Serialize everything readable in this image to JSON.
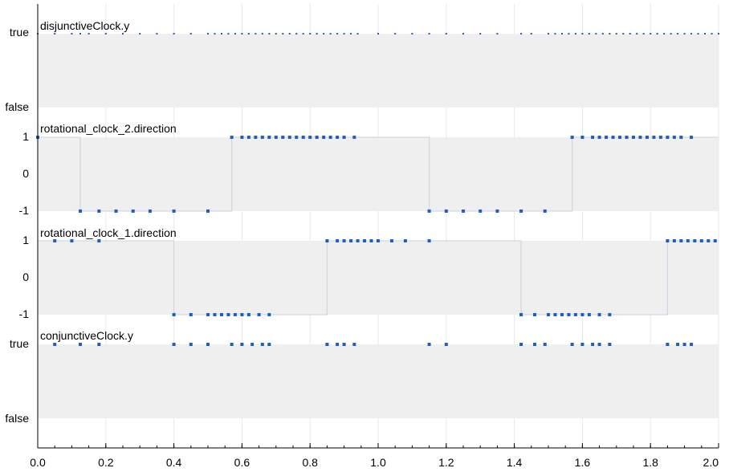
{
  "chart_data": {
    "type": "scatter",
    "xlim": [
      0.0,
      2.0
    ],
    "xticks": [
      "0.0",
      "0.2",
      "0.4",
      "0.6",
      "0.8",
      "1.0",
      "1.2",
      "1.4",
      "1.6",
      "1.8",
      "2.0"
    ],
    "grid": true,
    "colors": {
      "marker": "#1f5fc0",
      "band": "#efefef",
      "step_line": "#c8d0e0",
      "grid": "#e8e8e8"
    },
    "subplots": [
      {
        "title": "disjunctiveClock.y",
        "kind": "boolean",
        "ytick_labels": [
          "true",
          "false"
        ],
        "marker_size": "small",
        "x": [
          0.0,
          0.05,
          0.1,
          0.125,
          0.15,
          0.2,
          0.25,
          0.3,
          0.35,
          0.4,
          0.45,
          0.5,
          0.52,
          0.54,
          0.56,
          0.58,
          0.6,
          0.62,
          0.64,
          0.66,
          0.68,
          0.7,
          0.72,
          0.74,
          0.76,
          0.78,
          0.8,
          0.82,
          0.84,
          0.86,
          0.88,
          0.9,
          0.92,
          0.94,
          1.0,
          1.05,
          1.1,
          1.15,
          1.2,
          1.25,
          1.3,
          1.35,
          1.42,
          1.45,
          1.5,
          1.52,
          1.54,
          1.56,
          1.58,
          1.6,
          1.62,
          1.64,
          1.66,
          1.68,
          1.7,
          1.72,
          1.74,
          1.76,
          1.78,
          1.8,
          1.82,
          1.84,
          1.86,
          1.88,
          1.9,
          1.92,
          1.94,
          1.96,
          1.98,
          2.0
        ],
        "y": [
          true,
          true,
          true,
          true,
          true,
          true,
          true,
          true,
          true,
          true,
          true,
          true,
          true,
          true,
          true,
          true,
          true,
          true,
          true,
          true,
          true,
          true,
          true,
          true,
          true,
          true,
          true,
          true,
          true,
          true,
          true,
          true,
          true,
          true,
          true,
          true,
          true,
          true,
          true,
          true,
          true,
          true,
          true,
          true,
          true,
          true,
          true,
          true,
          true,
          true,
          true,
          true,
          true,
          true,
          true,
          true,
          true,
          true,
          true,
          true,
          true,
          true,
          true,
          true,
          true,
          true,
          true,
          true,
          true,
          true
        ]
      },
      {
        "title": "rotational_clock_2.direction",
        "kind": "integer",
        "ytick_labels": [
          "1",
          "0",
          "-1"
        ],
        "ylim": [
          -1,
          1
        ],
        "marker_size": "large",
        "transitions_x": [
          0.0,
          0.125,
          0.57,
          1.15,
          1.57
        ],
        "transitions_y": [
          1,
          -1,
          1,
          -1,
          1
        ],
        "x": [
          0.0,
          0.125,
          0.18,
          0.23,
          0.28,
          0.33,
          0.4,
          0.5,
          0.57,
          0.6,
          0.62,
          0.64,
          0.66,
          0.68,
          0.7,
          0.72,
          0.74,
          0.76,
          0.78,
          0.8,
          0.82,
          0.84,
          0.86,
          0.88,
          0.9,
          0.93,
          1.15,
          1.2,
          1.25,
          1.3,
          1.35,
          1.42,
          1.49,
          1.57,
          1.6,
          1.63,
          1.65,
          1.67,
          1.69,
          1.71,
          1.73,
          1.75,
          1.77,
          1.79,
          1.81,
          1.83,
          1.85,
          1.87,
          1.89,
          1.92
        ],
        "y": [
          1,
          -1,
          -1,
          -1,
          -1,
          -1,
          -1,
          -1,
          1,
          1,
          1,
          1,
          1,
          1,
          1,
          1,
          1,
          1,
          1,
          1,
          1,
          1,
          1,
          1,
          1,
          1,
          -1,
          -1,
          -1,
          -1,
          -1,
          -1,
          -1,
          1,
          1,
          1,
          1,
          1,
          1,
          1,
          1,
          1,
          1,
          1,
          1,
          1,
          1,
          1,
          1,
          1
        ]
      },
      {
        "title": "rotational_clock_1.direction",
        "kind": "integer",
        "ytick_labels": [
          "1",
          "0",
          "-1"
        ],
        "ylim": [
          -1,
          1
        ],
        "marker_size": "large",
        "transitions_x": [
          0.0,
          0.4,
          0.85,
          1.42,
          1.85
        ],
        "transitions_y": [
          1,
          -1,
          1,
          -1,
          1
        ],
        "x": [
          0.05,
          0.1,
          0.18,
          0.4,
          0.45,
          0.5,
          0.52,
          0.54,
          0.56,
          0.58,
          0.6,
          0.62,
          0.65,
          0.68,
          0.85,
          0.88,
          0.9,
          0.92,
          0.94,
          0.96,
          0.98,
          1.0,
          1.04,
          1.08,
          1.15,
          1.42,
          1.46,
          1.5,
          1.52,
          1.54,
          1.56,
          1.58,
          1.6,
          1.62,
          1.65,
          1.68,
          1.85,
          1.87,
          1.89,
          1.91,
          1.93,
          1.95,
          1.97,
          1.99
        ],
        "y": [
          1,
          1,
          1,
          -1,
          -1,
          -1,
          -1,
          -1,
          -1,
          -1,
          -1,
          -1,
          -1,
          -1,
          1,
          1,
          1,
          1,
          1,
          1,
          1,
          1,
          1,
          1,
          1,
          -1,
          -1,
          -1,
          -1,
          -1,
          -1,
          -1,
          -1,
          -1,
          -1,
          -1,
          1,
          1,
          1,
          1,
          1,
          1,
          1,
          1
        ]
      },
      {
        "title": "conjunctiveClock.y",
        "kind": "boolean",
        "ytick_labels": [
          "true",
          "false"
        ],
        "marker_size": "large",
        "x": [
          0.05,
          0.125,
          0.18,
          0.4,
          0.45,
          0.5,
          0.57,
          0.6,
          0.63,
          0.66,
          0.68,
          0.85,
          0.88,
          0.9,
          0.93,
          1.15,
          1.2,
          1.42,
          1.46,
          1.49,
          1.57,
          1.6,
          1.63,
          1.65,
          1.68,
          1.85,
          1.88,
          1.9,
          1.92
        ],
        "y": [
          true,
          true,
          true,
          true,
          true,
          true,
          true,
          true,
          true,
          true,
          true,
          true,
          true,
          true,
          true,
          true,
          true,
          true,
          true,
          true,
          true,
          true,
          true,
          true,
          true,
          true,
          true,
          true,
          true
        ]
      }
    ]
  }
}
